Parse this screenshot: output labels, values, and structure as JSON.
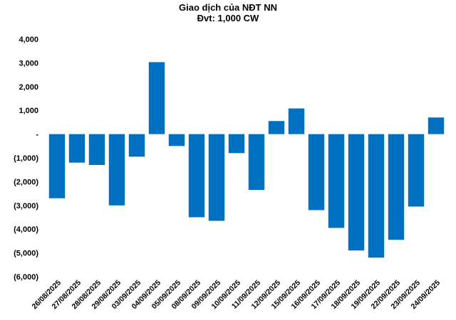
{
  "chart_data": {
    "type": "bar",
    "title": "Giao dịch của NĐT NN",
    "subtitle": "Đvt: 1,000 CW",
    "xlabel": "",
    "ylabel": "",
    "ylim": [
      -6000,
      4000
    ],
    "yticks": [
      4000,
      3000,
      2000,
      1000,
      0,
      -1000,
      -2000,
      -3000,
      -4000,
      -5000,
      -6000
    ],
    "ytick_labels": [
      "4,000",
      "3,000",
      "2,000",
      "1,000",
      "-",
      "(1,000)",
      "(2,000)",
      "(3,000)",
      "(4,000)",
      "(5,000)",
      "(6,000)"
    ],
    "grid": false,
    "legend": "none",
    "bar_color": "#0070C0",
    "categories": [
      "26/08/2025",
      "27/08/2025",
      "28/08/2025",
      "29/08/2025",
      "03/09/2025",
      "04/09/2025",
      "05/09/2025",
      "08/09/2025",
      "09/09/2025",
      "10/09/2025",
      "11/09/2025",
      "12/09/2025",
      "15/09/2025",
      "16/09/2025",
      "17/09/2025",
      "18/09/2025",
      "19/09/2025",
      "22/09/2025",
      "23/09/2025",
      "24/09/2025"
    ],
    "values": [
      -2700,
      -1200,
      -1300,
      -3000,
      -950,
      3030,
      -500,
      -3500,
      -3650,
      -800,
      -2350,
      550,
      1080,
      -3200,
      -3950,
      -4900,
      -5200,
      -4450,
      -3050,
      700
    ]
  }
}
